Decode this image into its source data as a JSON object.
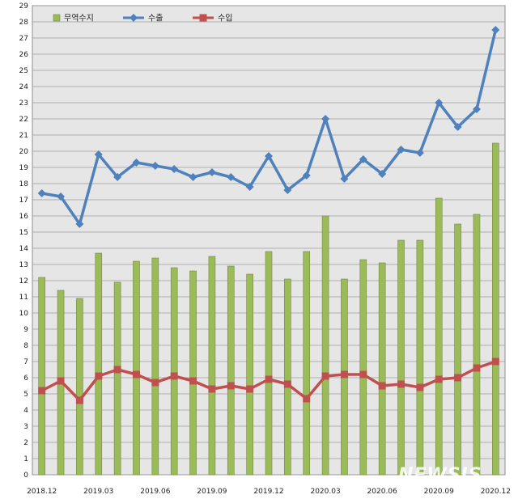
{
  "chart_data": {
    "type": "bar",
    "ylim": [
      0,
      29
    ],
    "y_ticks": [
      0,
      1,
      2,
      3,
      4,
      5,
      6,
      7,
      8,
      9,
      10,
      11,
      12,
      13,
      14,
      15,
      16,
      17,
      18,
      19,
      20,
      21,
      22,
      23,
      24,
      25,
      26,
      27,
      28,
      29
    ],
    "categories": [
      "2018.12",
      "2019.01",
      "2019.02",
      "2019.03",
      "2019.04",
      "2019.05",
      "2019.06",
      "2019.07",
      "2019.08",
      "2019.09",
      "2019.10",
      "2019.11",
      "2019.12",
      "2020.01",
      "2020.02",
      "2020.03",
      "2020.04",
      "2020.05",
      "2020.06",
      "2020.07",
      "2020.08",
      "2020.09",
      "2020.10",
      "2020.11",
      "2020.12"
    ],
    "x_tick_labels": [
      "2018.12",
      "",
      "",
      "2019.03",
      "",
      "",
      "2019.06",
      "",
      "",
      "2019.09",
      "",
      "",
      "2019.12",
      "",
      "",
      "2020.03",
      "",
      "",
      "2020.06",
      "",
      "",
      "2020.09",
      "",
      "",
      "2020.12"
    ],
    "grid": true,
    "legend_position": "top-left",
    "series": [
      {
        "name": "무역수지",
        "kind": "bar",
        "color": "#9bbb59",
        "values": [
          12.2,
          11.4,
          10.9,
          13.7,
          11.9,
          13.2,
          13.4,
          12.8,
          12.6,
          13.5,
          12.9,
          12.4,
          13.8,
          12.1,
          13.8,
          16.0,
          12.1,
          13.3,
          13.1,
          14.5,
          14.5,
          17.1,
          15.5,
          16.1,
          20.5
        ]
      },
      {
        "name": "수출",
        "kind": "line",
        "color": "#4f81bd",
        "marker": "diamond",
        "values": [
          17.4,
          17.2,
          15.5,
          19.8,
          18.4,
          19.3,
          19.1,
          18.9,
          18.4,
          18.7,
          18.4,
          17.8,
          19.7,
          17.6,
          18.5,
          22.0,
          18.3,
          19.5,
          18.6,
          20.1,
          19.9,
          23.0,
          21.5,
          22.6,
          27.5
        ]
      },
      {
        "name": "수입",
        "kind": "line",
        "color": "#c0504d",
        "marker": "square",
        "values": [
          5.2,
          5.8,
          4.6,
          6.1,
          6.5,
          6.2,
          5.7,
          6.1,
          5.8,
          5.3,
          5.5,
          5.3,
          5.9,
          5.6,
          4.7,
          6.1,
          6.2,
          6.2,
          5.5,
          5.6,
          5.4,
          5.9,
          6.0,
          6.6,
          7.0
        ]
      }
    ]
  },
  "watermark": "NEWSIS"
}
